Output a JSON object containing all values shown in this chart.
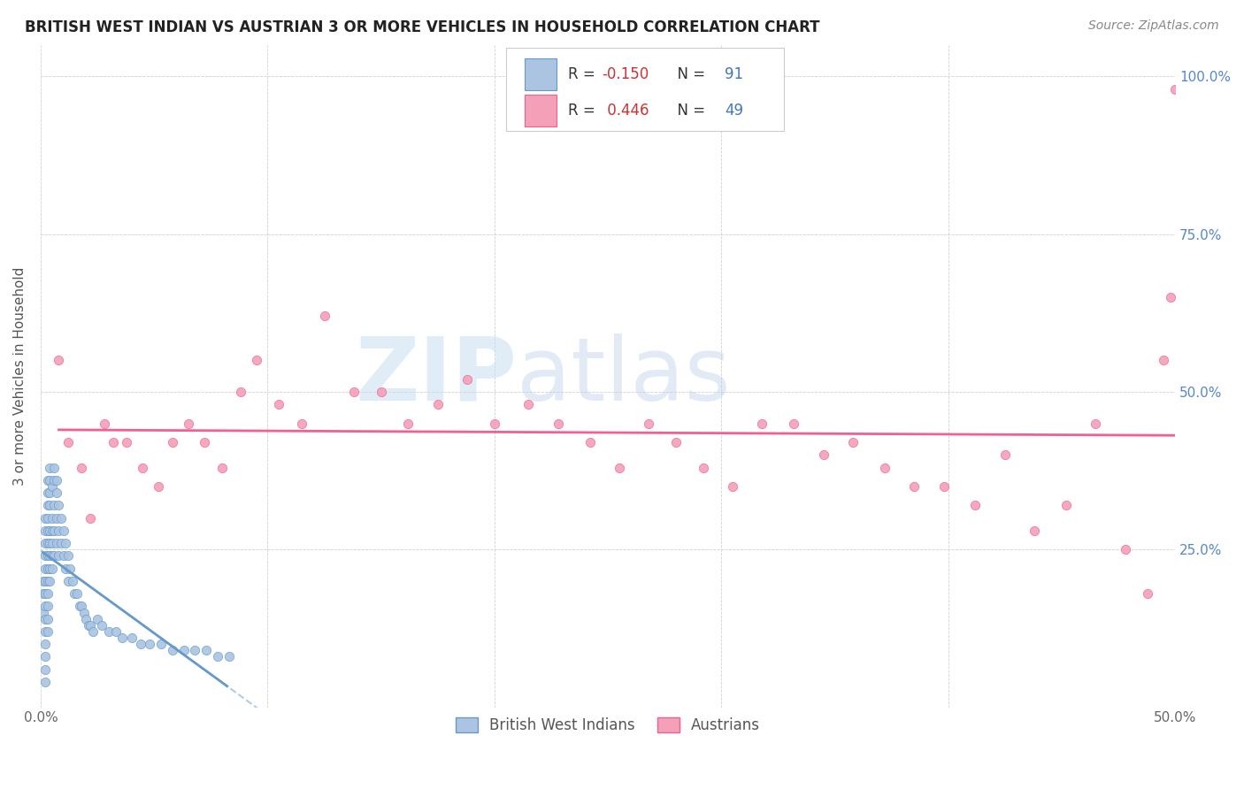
{
  "title": "BRITISH WEST INDIAN VS AUSTRIAN 3 OR MORE VEHICLES IN HOUSEHOLD CORRELATION CHART",
  "source": "Source: ZipAtlas.com",
  "ylabel": "3 or more Vehicles in Household",
  "xlim": [
    0.0,
    0.5
  ],
  "ylim": [
    0.0,
    1.05
  ],
  "watermark_zip": "ZIP",
  "watermark_atlas": "atlas",
  "legend_labels": [
    "British West Indians",
    "Austrians"
  ],
  "bwi_color": "#aac4e2",
  "aust_color": "#f4a0b8",
  "bwi_line_color": "#6699cc",
  "aust_line_color": "#f06090",
  "bwi_r": -0.15,
  "bwi_n": 91,
  "aust_r": 0.446,
  "aust_n": 49,
  "bwi_x": [
    0.001,
    0.001,
    0.001,
    0.002,
    0.002,
    0.002,
    0.002,
    0.002,
    0.002,
    0.002,
    0.002,
    0.002,
    0.002,
    0.002,
    0.002,
    0.002,
    0.002,
    0.003,
    0.003,
    0.003,
    0.003,
    0.003,
    0.003,
    0.003,
    0.003,
    0.003,
    0.003,
    0.003,
    0.003,
    0.003,
    0.004,
    0.004,
    0.004,
    0.004,
    0.004,
    0.004,
    0.004,
    0.004,
    0.004,
    0.005,
    0.005,
    0.005,
    0.005,
    0.005,
    0.005,
    0.006,
    0.006,
    0.006,
    0.006,
    0.006,
    0.007,
    0.007,
    0.007,
    0.007,
    0.008,
    0.008,
    0.008,
    0.009,
    0.009,
    0.01,
    0.01,
    0.011,
    0.011,
    0.012,
    0.012,
    0.013,
    0.014,
    0.015,
    0.016,
    0.017,
    0.018,
    0.019,
    0.02,
    0.021,
    0.022,
    0.023,
    0.025,
    0.027,
    0.03,
    0.033,
    0.036,
    0.04,
    0.044,
    0.048,
    0.053,
    0.058,
    0.063,
    0.068,
    0.073,
    0.078,
    0.083
  ],
  "bwi_y": [
    0.2,
    0.18,
    0.15,
    0.3,
    0.28,
    0.26,
    0.24,
    0.22,
    0.2,
    0.18,
    0.16,
    0.14,
    0.12,
    0.1,
    0.08,
    0.06,
    0.04,
    0.36,
    0.34,
    0.32,
    0.3,
    0.28,
    0.26,
    0.24,
    0.22,
    0.2,
    0.18,
    0.16,
    0.14,
    0.12,
    0.38,
    0.36,
    0.34,
    0.32,
    0.28,
    0.26,
    0.24,
    0.22,
    0.2,
    0.35,
    0.3,
    0.28,
    0.26,
    0.24,
    0.22,
    0.38,
    0.36,
    0.32,
    0.28,
    0.24,
    0.36,
    0.34,
    0.3,
    0.26,
    0.32,
    0.28,
    0.24,
    0.3,
    0.26,
    0.28,
    0.24,
    0.26,
    0.22,
    0.24,
    0.2,
    0.22,
    0.2,
    0.18,
    0.18,
    0.16,
    0.16,
    0.15,
    0.14,
    0.13,
    0.13,
    0.12,
    0.14,
    0.13,
    0.12,
    0.12,
    0.11,
    0.11,
    0.1,
    0.1,
    0.1,
    0.09,
    0.09,
    0.09,
    0.09,
    0.08,
    0.08
  ],
  "aust_x": [
    0.008,
    0.012,
    0.018,
    0.022,
    0.028,
    0.032,
    0.038,
    0.045,
    0.052,
    0.058,
    0.065,
    0.072,
    0.08,
    0.088,
    0.095,
    0.105,
    0.115,
    0.125,
    0.138,
    0.15,
    0.162,
    0.175,
    0.188,
    0.2,
    0.215,
    0.228,
    0.242,
    0.255,
    0.268,
    0.28,
    0.292,
    0.305,
    0.318,
    0.332,
    0.345,
    0.358,
    0.372,
    0.385,
    0.398,
    0.412,
    0.425,
    0.438,
    0.452,
    0.465,
    0.478,
    0.488,
    0.495,
    0.498,
    0.5
  ],
  "aust_y": [
    0.55,
    0.42,
    0.38,
    0.3,
    0.45,
    0.42,
    0.42,
    0.38,
    0.35,
    0.42,
    0.45,
    0.42,
    0.38,
    0.5,
    0.55,
    0.48,
    0.45,
    0.62,
    0.5,
    0.5,
    0.45,
    0.48,
    0.52,
    0.45,
    0.48,
    0.45,
    0.42,
    0.38,
    0.45,
    0.42,
    0.38,
    0.35,
    0.45,
    0.45,
    0.4,
    0.42,
    0.38,
    0.35,
    0.35,
    0.32,
    0.4,
    0.28,
    0.32,
    0.45,
    0.25,
    0.18,
    0.55,
    0.65,
    0.98
  ]
}
